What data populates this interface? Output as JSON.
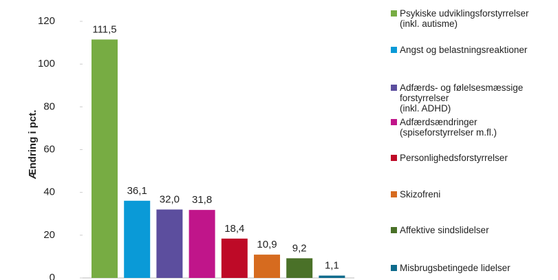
{
  "chart_data": {
    "type": "bar",
    "ylabel": "Ændring i pct.",
    "categories": [
      null
    ],
    "ylim": [
      0,
      120
    ],
    "yticks": [
      0,
      20,
      40,
      60,
      80,
      100,
      120
    ],
    "series": [
      {
        "name": "Psykiske udviklingsforstyrrelser\n(inkl. autisme)",
        "color": "#77ac43",
        "values": [
          111.5
        ],
        "value_labels": [
          "111,5"
        ]
      },
      {
        "name": "Angst og belastningsreaktioner",
        "color": "#0a9ad7",
        "values": [
          36.1
        ],
        "value_labels": [
          "36,1"
        ]
      },
      {
        "name": "Adfærds- og følelsesmæssige\nforstyrrelser\n(inkl. ADHD)",
        "color": "#5c4e9e",
        "values": [
          32.0
        ],
        "value_labels": [
          "32,0"
        ]
      },
      {
        "name": "Adfærdsændringer\n(spiseforstyrrelser m.fl.)",
        "color": "#c0158a",
        "values": [
          31.8
        ],
        "value_labels": [
          "31,8"
        ]
      },
      {
        "name": "Personlighedsforstyrrelser",
        "color": "#be0a27",
        "values": [
          18.4
        ],
        "value_labels": [
          "18,4"
        ]
      },
      {
        "name": "Skizofreni",
        "color": "#d66b1f",
        "values": [
          10.9
        ],
        "value_labels": [
          "10,9"
        ]
      },
      {
        "name": "Affektive sindslidelser",
        "color": "#4a7128",
        "values": [
          9.2
        ],
        "value_labels": [
          "9,2"
        ]
      },
      {
        "name": "Misbrugsbetingede lidelser",
        "color": "#0f6b8c",
        "values": [
          1.1
        ],
        "value_labels": [
          "1,1"
        ]
      }
    ]
  }
}
